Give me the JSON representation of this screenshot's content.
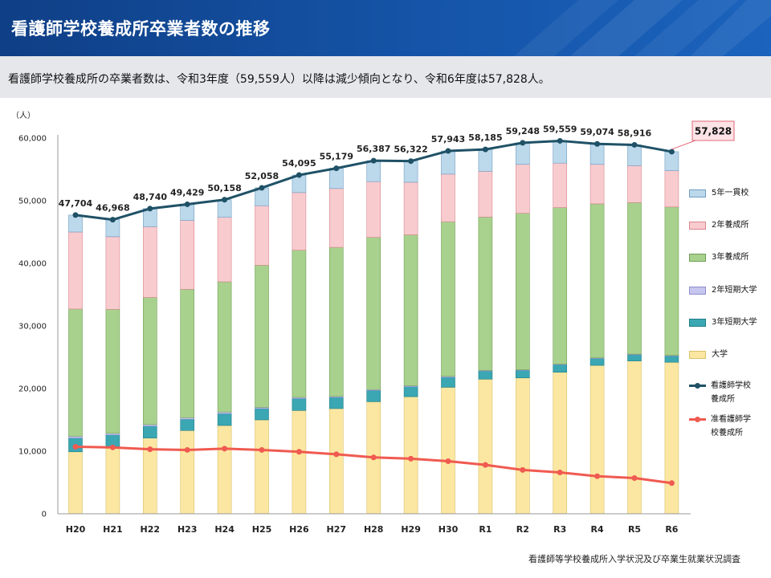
{
  "header": {
    "title": "看護師学校養成所卒業者数の推移",
    "subtitle": "看護師学校養成所の卒業者数は、令和3年度（59,559人）以降は減少傾向となり、令和6年度は57,828人。"
  },
  "source": "看護師等学校養成所入学状況及び卒業生就業状況調査",
  "chart_data": {
    "type": "bar",
    "stacked": true,
    "categories": [
      "H20",
      "H21",
      "H22",
      "H23",
      "H24",
      "H25",
      "H26",
      "H27",
      "H28",
      "H29",
      "H30",
      "R1",
      "R2",
      "R3",
      "R4",
      "R5",
      "R6"
    ],
    "y_unit_label": "（人）",
    "ylim": [
      0,
      60000
    ],
    "yticks": [
      0,
      10000,
      20000,
      30000,
      40000,
      50000,
      60000
    ],
    "ytick_labels": [
      "0",
      "10,000",
      "20,000",
      "30,000",
      "40,000",
      "50,000",
      "60,000"
    ],
    "grid": false,
    "legend_position": "right",
    "series": [
      {
        "name": "大学",
        "color": "#fbe7a1",
        "border": "#d8c16a",
        "values": [
          9900,
          10700,
          12100,
          13300,
          14100,
          15000,
          16500,
          16800,
          17900,
          18700,
          20200,
          21500,
          21700,
          22600,
          23700,
          24400,
          24200
        ]
      },
      {
        "name": "3年短期大学",
        "color": "#3aa7b3",
        "border": "#1f7f8a",
        "values": [
          2200,
          1900,
          1900,
          1800,
          1900,
          1800,
          1900,
          1800,
          1800,
          1600,
          1600,
          1300,
          1200,
          1200,
          1100,
          1000,
          1000
        ]
      },
      {
        "name": "2年短期大学",
        "color": "#c6c6ee",
        "border": "#8f8fcf",
        "values": [
          300,
          250,
          250,
          250,
          250,
          200,
          200,
          150,
          150,
          150,
          150,
          100,
          100,
          100,
          100,
          100,
          100
        ]
      },
      {
        "name": "3年養成所",
        "color": "#a9d18e",
        "border": "#6f9e54",
        "values": [
          20300,
          19800,
          20300,
          20500,
          20800,
          22700,
          23500,
          23800,
          24300,
          24100,
          24700,
          24500,
          25000,
          25000,
          24600,
          24200,
          23700
        ]
      },
      {
        "name": "2年養成所",
        "color": "#f8cbcf",
        "border": "#d8878e",
        "values": [
          12300,
          11600,
          11300,
          11000,
          10300,
          9500,
          9200,
          9400,
          8900,
          8400,
          7600,
          7300,
          7800,
          7100,
          6300,
          5900,
          5800
        ]
      },
      {
        "name": "5年一貫校",
        "color": "#bcd8eb",
        "border": "#6f9ec2",
        "values": [
          2704,
          2718,
          2890,
          2579,
          2808,
          2858,
          2795,
          3229,
          3337,
          3372,
          3693,
          3485,
          3448,
          3559,
          3274,
          3316,
          3028
        ]
      }
    ],
    "lines": [
      {
        "name": "看護師学校養成所",
        "legend_label": "看護師学校\n養成所",
        "color": "#1f5166",
        "values": [
          47704,
          46968,
          48740,
          49429,
          50158,
          52058,
          54095,
          55179,
          56387,
          56322,
          57943,
          58185,
          59248,
          59559,
          59074,
          58916,
          57828
        ],
        "labels": [
          "47,704",
          "46,968",
          "48,740",
          "49,429",
          "50,158",
          "52,058",
          "54,095",
          "55,179",
          "56,387",
          "56,322",
          "57,943",
          "58,185",
          "59,248",
          "59,559",
          "59,074",
          "58,916",
          "57,828"
        ],
        "highlight_last": true
      },
      {
        "name": "准看護師学校養成所",
        "legend_label": "准看護師学\n校養成所",
        "color": "#f05a50",
        "values": [
          10700,
          10600,
          10300,
          10200,
          10400,
          10200,
          9900,
          9500,
          9000,
          8800,
          8400,
          7800,
          7000,
          6600,
          6000,
          5700,
          4900
        ]
      }
    ]
  }
}
